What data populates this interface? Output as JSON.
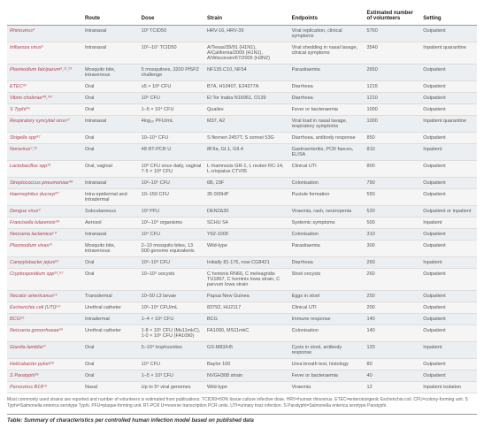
{
  "table": {
    "columns": [
      "",
      "Route",
      "Dose",
      "Strain",
      "Endpoints",
      "Estimated number of volunteers",
      "Setting"
    ],
    "rows": [
      [
        "Rhinovirus⁴",
        "Intranasal",
        "10³ TCID50",
        "HRV-16, HRV-39",
        "Viral replication, clinical symptoms",
        "5760",
        "Outpatient"
      ],
      [
        "Influenza virus⁵",
        "Intranasal",
        "10⁵–10⁷ TCID50",
        "A/Texas/39/91 (H1N1), A/California/2009 (H1N1), A/Wisconsin/67/2005 (H3N2)",
        "Viral shedding in nasal lavage, clinical symptoms",
        "3540",
        "Inpatient quarantine"
      ],
      [
        "Plasmodium falciparum⁶,²¹,²³",
        "Mosquito bite, intravenous",
        "5 mosquitoes, 3200 PfSPZ challenge",
        "NF135.C10, NF54",
        "Parasitaemia",
        "2650",
        "Outpatient"
      ],
      [
        "ETEC⁴²",
        "Oral",
        "≥5 × 10⁸ CFU",
        "B7A, H10407, E24377A",
        "Diarrhoea",
        "1215",
        "Outpatient"
      ],
      [
        "Vibrio cholerae⁴⁸,⁴⁹",
        "Oral",
        "10⁶ CFU",
        "El Tor Inaba N16961, O139",
        "Diarrhoea",
        "1210",
        "Outpatient"
      ],
      [
        "S Typhi⁴⁵",
        "Oral",
        "1–5 × 10⁴ CFU",
        "Quailes",
        "Fever or bacteraemia",
        "1000",
        "Outpatient"
      ],
      [
        "Respiratory syncytial virus¹⁷",
        "Intranasal",
        "4log₁₀ PFU/mL",
        "M37, A2",
        "Viral load in nasal lavage, respiratory symptoms",
        "1000",
        "Inpatient quarantine"
      ],
      [
        "Shigella spp⁴²",
        "Oral",
        "10–10⁴ CFU",
        "S flexneri 2457T, S sonnei 53G",
        "Diarrhoea, antibody response",
        "850",
        "Outpatient"
      ],
      [
        "Norovirus⁷,²²",
        "Oral",
        "48 RT-PCR U",
        "8FIIa, GI.1, GII.4",
        "Gastroenteritis, PCR faeces, ELISA",
        "810",
        "Inpatient"
      ],
      [
        "Lactobacillus spp²⁶",
        "Oral, vaginal",
        "10⁸ CFU once daily, vaginal 7·5 × 10⁸ CFU",
        "L rhamnosis GR-1, L reuteri RC-14, L crispatus CTV05",
        "Clinical UTI",
        "800",
        "Outpatient"
      ],
      [
        "Streptococcus pneumoniae⁴⁸",
        "Intranasal",
        "10²–10⁵ CFU",
        "6B, 23F",
        "Colonisation",
        "790",
        "Outpatient"
      ],
      [
        "Haemophilus ducreyi⁴⁷",
        "Intra-epidermal and intradermal",
        "10–150 CFU",
        "35 000HP",
        "Pustule formation",
        "550",
        "Outpatient"
      ],
      [
        "Dengue virus⁴",
        "Subcutaneous",
        "10³ PFU",
        "DEN2Δ30",
        "Viraemia, rash, neutropenia",
        "520",
        "Outpatient or inpatient"
      ],
      [
        "Francisella tularensis⁴⁹",
        "Aerosol",
        "10¹–10⁴ organisms",
        "SCHU S4",
        "Systemic symptoms",
        "500",
        "Inpatient"
      ],
      [
        "Neisseria lactamica⁵⁰",
        "Intranasal",
        "10⁴ CFU",
        "Y92-1009",
        "Colonisation",
        "310",
        "Outpatient"
      ],
      [
        "Plasmodium vivax³¹",
        "Mosquito bite, intravenous",
        "2–10 mosquito bites, 13 000 genome equivalents",
        "Wild-type",
        "Parasitaemia",
        "300",
        "Outpatient"
      ],
      [
        "Campylobacter jejuni⁵¹",
        "Oral",
        "10²–10⁹ CFU",
        "Initially 81-176, now CG8421",
        "Diarrhoea",
        "260",
        "Inpatient"
      ],
      [
        "Cryptosporidium spp¹⁶,⁵²",
        "Oral",
        "10–10⁵ oocysts",
        "C hominis RN66, C meleagridis TU1867, C hominis Iowa strain, C parvum Iowa strain",
        "Stool oocysts",
        "260",
        "Outpatient"
      ],
      [
        "Necator americanus⁵³",
        "Transdermal",
        "10–50 L3 larvae",
        "Papua New Guinea",
        "Eggs in stool",
        "250",
        "Outpatient"
      ],
      [
        "Escherichia coli (UTI)⁵⁴",
        "Urethral catheter",
        "10²–10⁴ CFU/mL",
        "83792, HU2117",
        "Clinical UTI",
        "200",
        "Outpatient"
      ],
      [
        "BCG⁵⁵",
        "Intradermal",
        "1–4 × 10⁶ CFU",
        "BCG",
        "Immune response",
        "140",
        "Outpatient"
      ],
      [
        "Neisseria gonorrhoeae⁵⁶",
        "Urethral catheter",
        "1·8 × 10⁵ CFU (Ms11mkC), 1·0 × 10⁶ CFU (FA1090)",
        "FA1090, MS11mkC",
        "Colonisation",
        "140",
        "Outpatient"
      ],
      [
        "Giardia lamblia⁵⁷",
        "Oral",
        "5–10⁴ trophozoites",
        "GS-M83/H5",
        "Cysts in stool, antibody response",
        "120",
        "Inpatient"
      ],
      [
        "Helicobacter pylori⁵⁸",
        "Oral",
        "10⁴ CFU",
        "Baylor 100",
        "Urea breath test, histology",
        "80",
        "Outpatient"
      ],
      [
        "S Paratyphi³⁹",
        "Oral",
        "1–5 × 10³ CFU",
        "NVGH308 strain",
        "Fever or bacteraemia",
        "40",
        "Outpatient"
      ],
      [
        "Parvovirus B19⁵⁹",
        "Nasal",
        "Up to 5⁸ viral genomes",
        "Wild-type",
        "Viraemia",
        "12",
        "Inpatient isolation"
      ]
    ]
  },
  "footnote": "Most commonly used strains are reported and number of volunteers is estimated from publications. TCID50=50% tissue culture infective dose. HRV=human rhinovirus. ETEC=enterotoxigenic Escherichia coli. CFU=colony-forming unit. S Typhi=Salmonella enterica serotype Typhi. PFU=plaque-forming unit. RT-PCR U=reverse transcription PCR units. UTI=urinary tract infection. S Paratyphi=Salmonella enterica serotype Paratyphi.",
  "caption": "Table: Summary of characteristics per controlled human infection model based on published data"
}
